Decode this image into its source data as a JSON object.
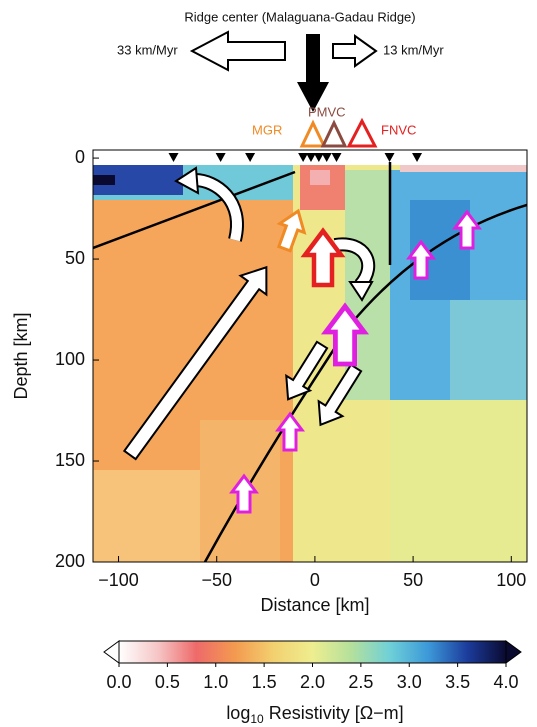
{
  "chart_data": {
    "type": "heatmap",
    "title": "Ridge center (Malaguana-Gadau Ridge)",
    "xlabel": "Distance [km]",
    "ylabel": "Depth [km]",
    "xlim": [
      -113,
      108
    ],
    "ylim": [
      -4,
      200
    ],
    "y_inverted": true,
    "xticks": [
      {
        "value": -100,
        "label": "−100"
      },
      {
        "value": -50,
        "label": "−50"
      },
      0,
      50,
      100
    ],
    "yticks": [
      0,
      50,
      100,
      150,
      200
    ],
    "stations": [
      -72,
      -48,
      -33,
      -6,
      -2,
      2,
      6,
      11,
      38,
      52
    ],
    "annotations": {
      "left_rate": "33 km/Myr",
      "right_rate": "13 km/Myr",
      "mgr": "MGR",
      "pmvc": "PMVC",
      "fnvc": "FNVC"
    },
    "colorbar": {
      "label_base": "log",
      "label_sub": "10",
      "label_rest": " Resistivity [Ω−m]",
      "lim": [
        0,
        4
      ],
      "ticks": [
        {
          "value": 0,
          "label": "0.0"
        },
        {
          "value": 0.5,
          "label": "0.5"
        },
        {
          "value": 1,
          "label": "1.0"
        },
        {
          "value": 1.5,
          "label": "1.5"
        },
        {
          "value": 2,
          "label": "2.0"
        },
        {
          "value": 2.5,
          "label": "2.5"
        },
        {
          "value": 3,
          "label": "3.0"
        },
        {
          "value": 3.5,
          "label": "3.5"
        },
        {
          "value": 4,
          "label": "4.0"
        }
      ],
      "colormap": [
        "#ffffff",
        "#f6c6c6",
        "#ee6a6a",
        "#f39a50",
        "#f3d070",
        "#eeee90",
        "#b4e09c",
        "#6fd0d8",
        "#3c98d8",
        "#1c3c9c",
        "#0a0a30"
      ]
    }
  }
}
